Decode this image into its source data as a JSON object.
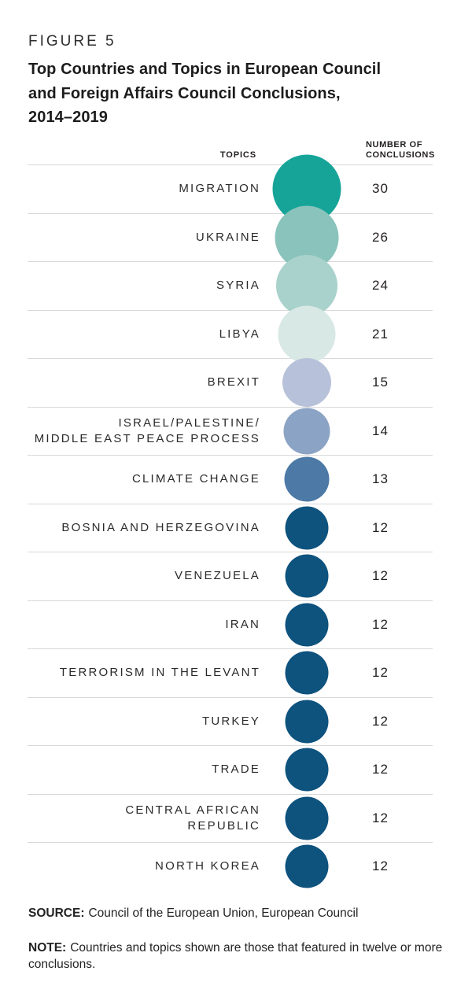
{
  "figure": {
    "eyebrow": "FIGURE 5",
    "title_lines": "Top Countries and Topics in European Council\nand Foreign Affairs Council Conclusions,\n2014–2019"
  },
  "table": {
    "col_topics": "TOPICS",
    "col_number": "NUMBER OF\nCONCLUSIONS"
  },
  "chart_data": {
    "type": "bubble",
    "title": "Top Countries and Topics in European Council and Foreign Affairs Council Conclusions, 2014–2019",
    "columns": [
      "TOPICS",
      "NUMBER OF CONCLUSIONS"
    ],
    "categories": [
      "MIGRATION",
      "UKRAINE",
      "SYRIA",
      "LIBYA",
      "BREXIT",
      "ISRAEL/PALESTINE/ MIDDLE EAST PEACE PROCESS",
      "CLIMATE CHANGE",
      "BOSNIA AND HERZEGOVINA",
      "VENEZUELA",
      "IRAN",
      "TERRORISM IN THE LEVANT",
      "TURKEY",
      "TRADE",
      "CENTRAL AFRICAN REPUBLIC",
      "NORTH KOREA"
    ],
    "values": [
      30,
      26,
      24,
      21,
      15,
      14,
      13,
      12,
      12,
      12,
      12,
      12,
      12,
      12,
      12
    ],
    "bubble_scale": "area-proportional",
    "legend": "none",
    "value_range": [
      12,
      30
    ],
    "rows": [
      {
        "label": "MIGRATION",
        "value": 30,
        "color": "#16a499"
      },
      {
        "label": "UKRAINE",
        "value": 26,
        "color": "#8ac3bb"
      },
      {
        "label": "SYRIA",
        "value": 24,
        "color": "#a8d2cb"
      },
      {
        "label": "LIBYA",
        "value": 21,
        "color": "#d8e8e4"
      },
      {
        "label": "BREXIT",
        "value": 15,
        "color": "#b7c1d9"
      },
      {
        "label": "ISRAEL/PALESTINE/\nMIDDLE EAST PEACE PROCESS",
        "value": 14,
        "color": "#8ba3c4"
      },
      {
        "label": "CLIMATE CHANGE",
        "value": 13,
        "color": "#4c79a5"
      },
      {
        "label": "BOSNIA AND HERZEGOVINA",
        "value": 12,
        "color": "#0e527e"
      },
      {
        "label": "VENEZUELA",
        "value": 12,
        "color": "#0e527e"
      },
      {
        "label": "IRAN",
        "value": 12,
        "color": "#0e527e"
      },
      {
        "label": "TERRORISM IN THE LEVANT",
        "value": 12,
        "color": "#0e527e"
      },
      {
        "label": "TURKEY",
        "value": 12,
        "color": "#0e527e"
      },
      {
        "label": "TRADE",
        "value": 12,
        "color": "#0e527e"
      },
      {
        "label": "CENTRAL AFRICAN\nREPUBLIC",
        "value": 12,
        "color": "#0e527e"
      },
      {
        "label": "NORTH KOREA",
        "value": 12,
        "color": "#0e527e"
      }
    ]
  },
  "footer": {
    "source_label": "SOURCE:",
    "source_text": "Council of the European Union, European Council",
    "note_label": "NOTE:",
    "note_text": "Countries and topics shown are those that featured in twelve or more conclusions."
  }
}
